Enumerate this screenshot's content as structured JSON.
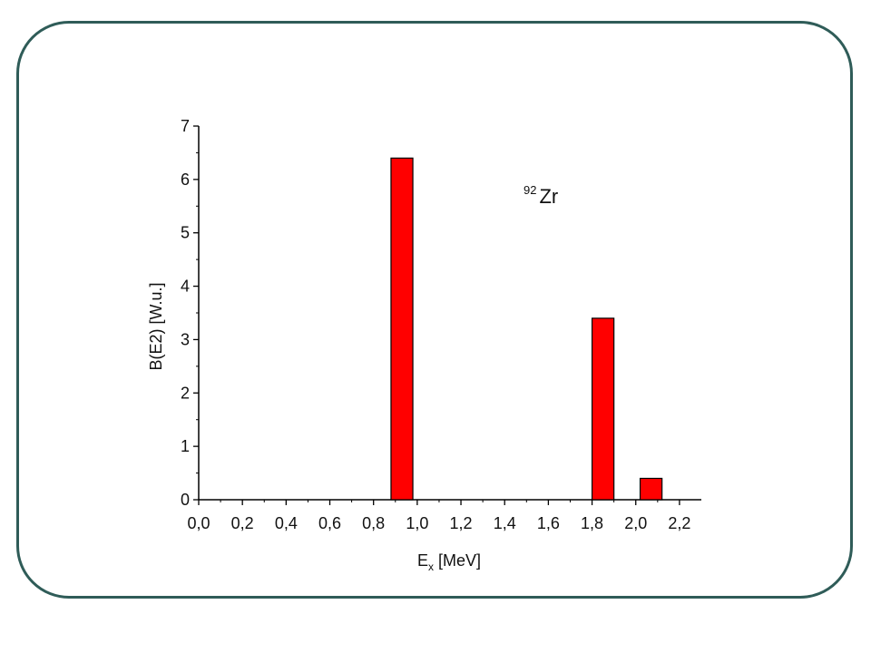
{
  "chart_data": {
    "type": "bar",
    "x": [
      0.93,
      1.85,
      2.07
    ],
    "values": [
      6.4,
      3.4,
      0.4
    ],
    "xlabel_main": "E",
    "xlabel_sub": "x",
    "xlabel_rest": " [MeV]",
    "ylabel": "B(E2) [W.u.]",
    "annotation": {
      "superscript": "92",
      "text": "Zr"
    },
    "xlim": [
      0.0,
      2.3
    ],
    "ylim": [
      0,
      7
    ],
    "x_ticks": [
      0.0,
      0.2,
      0.4,
      0.6,
      0.8,
      1.0,
      1.2,
      1.4,
      1.6,
      1.8,
      2.0,
      2.2
    ],
    "x_tick_labels": [
      "0,0",
      "0,2",
      "0,4",
      "0,6",
      "0,8",
      "1,0",
      "1,2",
      "1,4",
      "1,6",
      "1,8",
      "2,0",
      "2,2"
    ],
    "y_ticks": [
      0,
      1,
      2,
      3,
      4,
      5,
      6,
      7
    ],
    "y_tick_labels": [
      "0",
      "1",
      "2",
      "3",
      "4",
      "5",
      "6",
      "7"
    ],
    "bar_width": 0.1,
    "grid": false,
    "bar_color": "#ff0000",
    "bar_edge_color": "#000000",
    "frame_color": "#2f5c58"
  }
}
